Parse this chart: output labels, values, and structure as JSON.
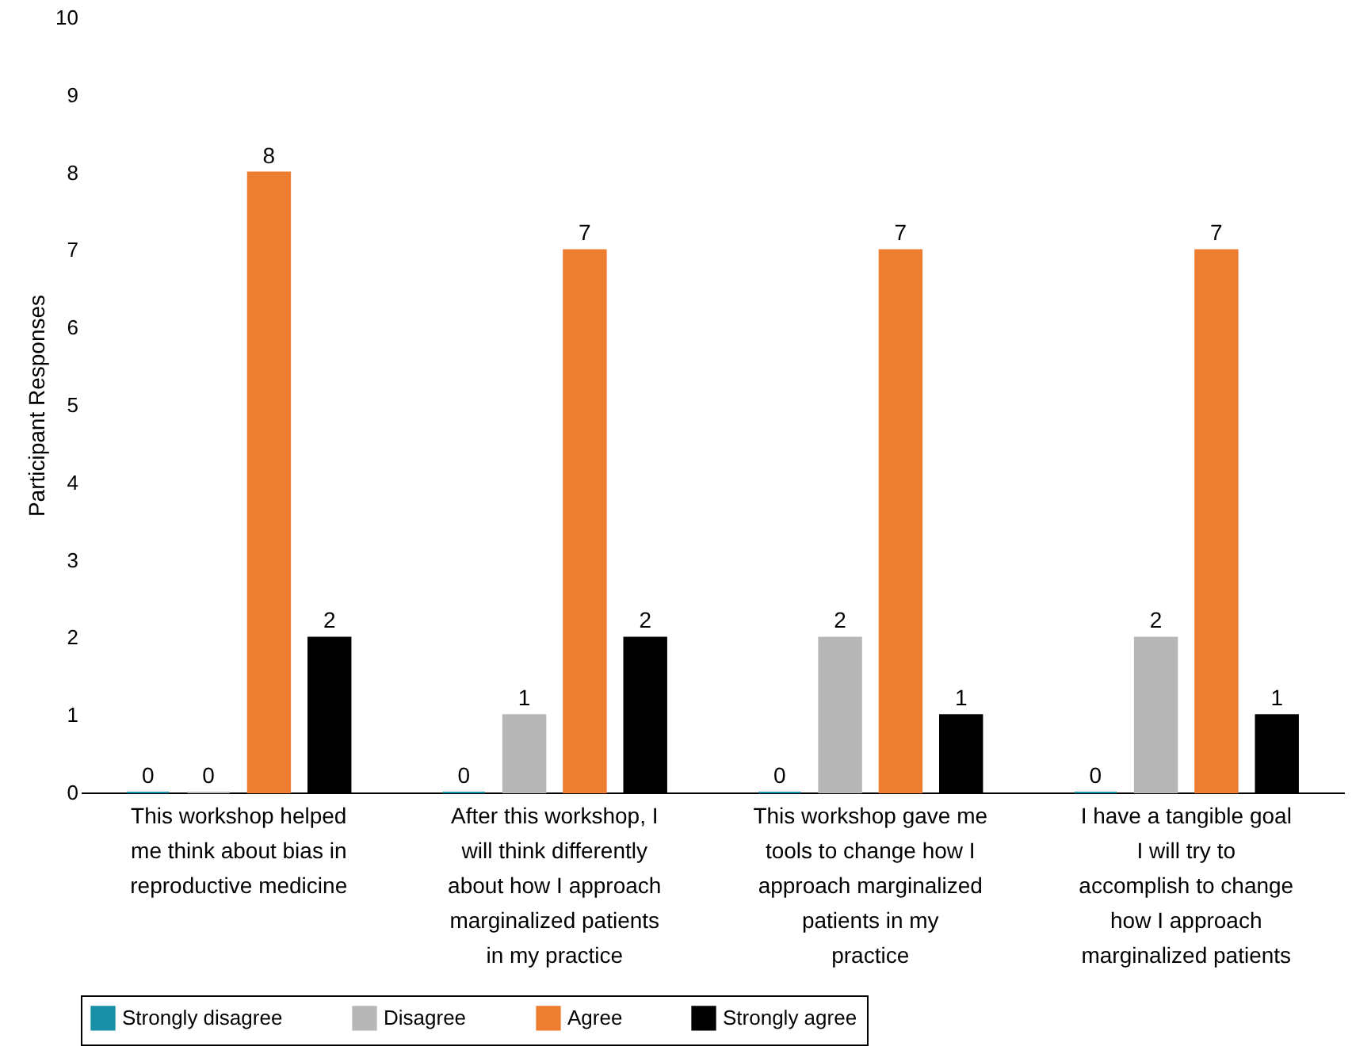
{
  "chart_data": {
    "type": "bar",
    "ylabel": "Participant Responses",
    "categories": [
      "This workshop helped me think about bias in reproductive medicine",
      "After this workshop, I will think differently about how I approach marginalized patients in my practice",
      "This workshop gave me tools to change how I approach marginalized patients in my practice",
      "I have a tangible goal I will try to accomplish to change how I approach marginalized patients"
    ],
    "series": [
      {
        "name": "Strongly disagree",
        "color": "#1a8fa8",
        "values": [
          0,
          0,
          0,
          0
        ]
      },
      {
        "name": "Disagree",
        "color": "#b7b7b7",
        "values": [
          0,
          1,
          2,
          2
        ]
      },
      {
        "name": "Agree",
        "color": "#ed7d31",
        "values": [
          8,
          7,
          7,
          7
        ]
      },
      {
        "name": "Strongly agree",
        "color": "#000000",
        "values": [
          2,
          2,
          1,
          1
        ]
      }
    ],
    "ylim": [
      0,
      10
    ],
    "yticks": [
      0,
      1,
      2,
      3,
      4,
      5,
      6,
      7,
      8,
      9,
      10
    ],
    "grid": false,
    "legend": "bottom",
    "data_labels": true
  }
}
